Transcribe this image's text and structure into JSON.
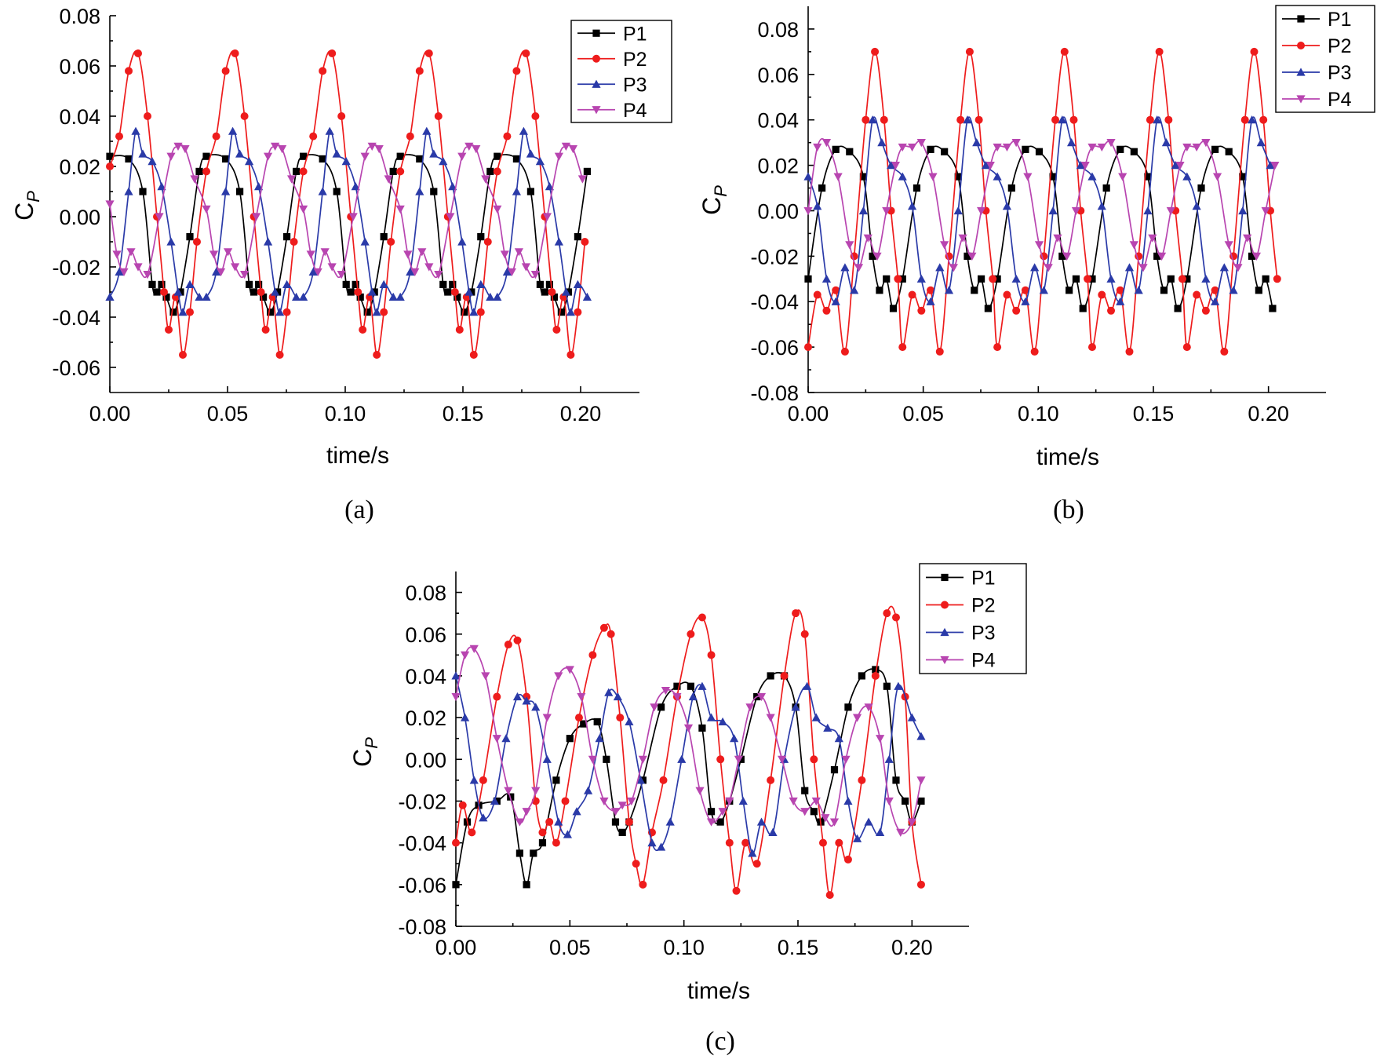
{
  "chart_data": [
    {
      "type": "line",
      "panel": "(a)",
      "caption": "(a)",
      "xlabel": "time/s",
      "ylabel_main": "C",
      "ylabel_sub": "P",
      "xlim": [
        0.0,
        0.225
      ],
      "ylim": [
        -0.07,
        0.08
      ],
      "xticks": [
        "0.00",
        "0.05",
        "0.10",
        "0.15",
        "0.20"
      ],
      "yticks": [
        "0.08",
        "0.06",
        "0.04",
        "0.02",
        "0.00",
        "-0.02",
        "-0.04",
        "-0.06"
      ],
      "ytick_values": [
        0.08,
        0.06,
        0.04,
        0.02,
        0.0,
        -0.02,
        -0.04,
        -0.06
      ],
      "legend_position": "top-right",
      "period": 0.0412,
      "x_end": 0.204,
      "series": [
        {
          "name": "P1",
          "color": "#000000",
          "marker": "square",
          "x": [
            0.0,
            0.008,
            0.014,
            0.018,
            0.02,
            0.022,
            0.024,
            0.027,
            0.03,
            0.034,
            0.038,
            0.041
          ],
          "y": [
            0.024,
            0.023,
            0.01,
            -0.027,
            -0.03,
            -0.027,
            -0.032,
            -0.038,
            -0.03,
            -0.008,
            0.018,
            0.024
          ]
        },
        {
          "name": "P2",
          "color": "#ee1c1c",
          "marker": "circle",
          "x": [
            0.0,
            0.004,
            0.008,
            0.012,
            0.016,
            0.02,
            0.023,
            0.025,
            0.028,
            0.031,
            0.034,
            0.037,
            0.041
          ],
          "y": [
            0.02,
            0.032,
            0.058,
            0.065,
            0.04,
            0.0,
            -0.03,
            -0.045,
            -0.032,
            -0.055,
            -0.038,
            -0.01,
            0.018
          ]
        },
        {
          "name": "P3",
          "color": "#2a3aa8",
          "marker": "triangle-up",
          "x": [
            0.0,
            0.004,
            0.008,
            0.011,
            0.014,
            0.018,
            0.022,
            0.026,
            0.029,
            0.031,
            0.034,
            0.038,
            0.041
          ],
          "y": [
            -0.032,
            -0.022,
            0.01,
            0.034,
            0.025,
            0.022,
            0.012,
            -0.01,
            -0.03,
            -0.038,
            -0.027,
            -0.032,
            -0.032
          ]
        },
        {
          "name": "P4",
          "color": "#b845b0",
          "marker": "triangle-down",
          "x": [
            0.0,
            0.003,
            0.006,
            0.009,
            0.012,
            0.016,
            0.021,
            0.026,
            0.029,
            0.032,
            0.036,
            0.041
          ],
          "y": [
            0.005,
            -0.015,
            -0.022,
            -0.014,
            -0.02,
            -0.023,
            0.0,
            0.024,
            0.028,
            0.027,
            0.015,
            0.003
          ]
        }
      ]
    },
    {
      "type": "line",
      "panel": "(b)",
      "caption": "(b)",
      "xlabel": "time/s",
      "ylabel_main": "C",
      "ylabel_sub": "P",
      "xlim": [
        0.0,
        0.225
      ],
      "ylim": [
        -0.08,
        0.09
      ],
      "xticks": [
        "0.00",
        "0.05",
        "0.10",
        "0.15",
        "0.20"
      ],
      "yticks": [
        "0.08",
        "0.06",
        "0.04",
        "0.02",
        "0.00",
        "-0.02",
        "-0.04",
        "-0.06",
        "-0.08"
      ],
      "ytick_values": [
        0.08,
        0.06,
        0.04,
        0.02,
        0.0,
        -0.02,
        -0.04,
        -0.06,
        -0.08
      ],
      "legend_position": "top-right",
      "period": 0.0412,
      "x_end": 0.204,
      "series": [
        {
          "name": "P1",
          "color": "#000000",
          "marker": "square",
          "x": [
            0.0,
            0.006,
            0.012,
            0.018,
            0.024,
            0.028,
            0.031,
            0.034,
            0.037,
            0.041
          ],
          "y": [
            -0.03,
            0.01,
            0.027,
            0.026,
            0.015,
            -0.02,
            -0.035,
            -0.03,
            -0.043,
            -0.03
          ]
        },
        {
          "name": "P2",
          "color": "#ee1c1c",
          "marker": "circle",
          "x": [
            0.0,
            0.004,
            0.008,
            0.012,
            0.016,
            0.02,
            0.025,
            0.029,
            0.033,
            0.036,
            0.039,
            0.041
          ],
          "y": [
            -0.06,
            -0.037,
            -0.044,
            -0.035,
            -0.062,
            -0.02,
            0.04,
            0.07,
            0.04,
            0.0,
            -0.03,
            -0.06
          ]
        },
        {
          "name": "P3",
          "color": "#2a3aa8",
          "marker": "triangle-up",
          "x": [
            0.0,
            0.004,
            0.008,
            0.012,
            0.016,
            0.02,
            0.024,
            0.028,
            0.032,
            0.036,
            0.041
          ],
          "y": [
            0.015,
            0.002,
            -0.03,
            -0.04,
            -0.025,
            -0.035,
            0.0,
            0.04,
            0.03,
            0.02,
            0.015
          ]
        },
        {
          "name": "P4",
          "color": "#b845b0",
          "marker": "triangle-down",
          "x": [
            0.0,
            0.004,
            0.008,
            0.013,
            0.018,
            0.022,
            0.026,
            0.03,
            0.034,
            0.038,
            0.041
          ],
          "y": [
            0.0,
            0.028,
            0.03,
            0.015,
            -0.015,
            -0.025,
            -0.012,
            -0.02,
            0.0,
            0.02,
            0.028
          ]
        }
      ]
    },
    {
      "type": "line",
      "panel": "(c)",
      "caption": "(c)",
      "xlabel": "time/s",
      "ylabel_main": "C",
      "ylabel_sub": "P",
      "xlim": [
        0.0,
        0.225
      ],
      "ylim": [
        -0.08,
        0.09
      ],
      "xticks": [
        "0.00",
        "0.05",
        "0.10",
        "0.15",
        "0.20"
      ],
      "yticks": [
        "0.08",
        "0.06",
        "0.04",
        "0.02",
        "0.00",
        "-0.02",
        "-0.04",
        "-0.06",
        "-0.08"
      ],
      "ytick_values": [
        0.08,
        0.06,
        0.04,
        0.02,
        0.0,
        -0.02,
        -0.04,
        -0.06,
        -0.08
      ],
      "legend_position": "top-right",
      "period": 0,
      "x_end": 0.204,
      "series": [
        {
          "name": "P1",
          "color": "#000000",
          "marker": "square",
          "x": [
            0.0,
            0.005,
            0.01,
            0.018,
            0.024,
            0.028,
            0.031,
            0.034,
            0.038,
            0.044,
            0.05,
            0.056,
            0.062,
            0.066,
            0.07,
            0.073,
            0.076,
            0.082,
            0.09,
            0.097,
            0.103,
            0.108,
            0.112,
            0.116,
            0.12,
            0.125,
            0.132,
            0.138,
            0.144,
            0.149,
            0.153,
            0.157,
            0.16,
            0.166,
            0.172,
            0.178,
            0.184,
            0.189,
            0.193,
            0.197,
            0.2,
            0.204
          ],
          "y": [
            -0.06,
            -0.03,
            -0.022,
            -0.02,
            -0.018,
            -0.045,
            -0.06,
            -0.045,
            -0.04,
            -0.01,
            0.01,
            0.017,
            0.018,
            0.0,
            -0.03,
            -0.035,
            -0.03,
            -0.01,
            0.025,
            0.035,
            0.035,
            0.015,
            -0.025,
            -0.03,
            -0.02,
            0.0,
            0.03,
            0.04,
            0.04,
            0.025,
            -0.015,
            -0.025,
            -0.03,
            -0.005,
            0.025,
            0.04,
            0.043,
            0.035,
            -0.01,
            -0.02,
            -0.03,
            -0.02
          ]
        },
        {
          "name": "P2",
          "color": "#ee1c1c",
          "marker": "circle",
          "x": [
            0.0,
            0.003,
            0.007,
            0.012,
            0.018,
            0.023,
            0.027,
            0.031,
            0.035,
            0.038,
            0.041,
            0.044,
            0.048,
            0.054,
            0.06,
            0.065,
            0.068,
            0.072,
            0.076,
            0.079,
            0.082,
            0.086,
            0.091,
            0.097,
            0.103,
            0.108,
            0.112,
            0.116,
            0.12,
            0.123,
            0.127,
            0.132,
            0.138,
            0.144,
            0.149,
            0.153,
            0.157,
            0.161,
            0.164,
            0.168,
            0.172,
            0.178,
            0.184,
            0.189,
            0.193,
            0.197,
            0.2,
            0.204
          ],
          "y": [
            -0.04,
            -0.022,
            -0.035,
            -0.01,
            0.03,
            0.055,
            0.057,
            0.03,
            -0.02,
            -0.035,
            -0.03,
            -0.04,
            -0.02,
            0.02,
            0.05,
            0.063,
            0.06,
            0.02,
            -0.03,
            -0.05,
            -0.06,
            -0.035,
            -0.01,
            0.03,
            0.06,
            0.068,
            0.05,
            0.0,
            -0.04,
            -0.063,
            -0.04,
            -0.05,
            -0.01,
            0.04,
            0.07,
            0.06,
            0.0,
            -0.04,
            -0.065,
            -0.04,
            -0.048,
            -0.01,
            0.04,
            0.07,
            0.068,
            0.03,
            -0.03,
            -0.06
          ]
        },
        {
          "name": "P3",
          "color": "#2a3aa8",
          "marker": "triangle-up",
          "x": [
            0.0,
            0.004,
            0.008,
            0.012,
            0.017,
            0.022,
            0.027,
            0.031,
            0.035,
            0.04,
            0.045,
            0.049,
            0.053,
            0.058,
            0.063,
            0.067,
            0.071,
            0.076,
            0.081,
            0.086,
            0.09,
            0.094,
            0.099,
            0.104,
            0.108,
            0.112,
            0.117,
            0.122,
            0.126,
            0.13,
            0.134,
            0.139,
            0.144,
            0.149,
            0.154,
            0.158,
            0.163,
            0.168,
            0.172,
            0.176,
            0.181,
            0.186,
            0.19,
            0.194,
            0.2,
            0.204
          ],
          "y": [
            0.04,
            0.02,
            -0.01,
            -0.028,
            -0.02,
            0.01,
            0.03,
            0.028,
            0.025,
            0.0,
            -0.03,
            -0.036,
            -0.025,
            -0.015,
            0.01,
            0.032,
            0.03,
            0.018,
            -0.01,
            -0.04,
            -0.042,
            -0.03,
            0.0,
            0.03,
            0.035,
            0.02,
            0.018,
            0.01,
            -0.02,
            -0.045,
            -0.03,
            -0.035,
            0.0,
            0.025,
            0.035,
            0.02,
            0.015,
            0.01,
            -0.02,
            -0.038,
            -0.03,
            -0.035,
            0.0,
            0.035,
            0.02,
            0.011
          ]
        },
        {
          "name": "P4",
          "color": "#b845b0",
          "marker": "triangle-down",
          "x": [
            0.0,
            0.004,
            0.008,
            0.013,
            0.018,
            0.023,
            0.028,
            0.031,
            0.035,
            0.04,
            0.045,
            0.05,
            0.055,
            0.06,
            0.065,
            0.07,
            0.073,
            0.077,
            0.082,
            0.087,
            0.092,
            0.097,
            0.102,
            0.107,
            0.112,
            0.117,
            0.12,
            0.124,
            0.129,
            0.134,
            0.138,
            0.143,
            0.148,
            0.153,
            0.158,
            0.162,
            0.166,
            0.171,
            0.176,
            0.181,
            0.186,
            0.19,
            0.195,
            0.2,
            0.204
          ],
          "y": [
            0.03,
            0.05,
            0.053,
            0.04,
            0.01,
            -0.015,
            -0.03,
            -0.025,
            -0.015,
            0.02,
            0.04,
            0.043,
            0.03,
            0.0,
            -0.02,
            -0.025,
            -0.022,
            -0.02,
            0.0,
            0.025,
            0.033,
            0.03,
            0.015,
            -0.015,
            -0.03,
            -0.025,
            -0.02,
            0.0,
            0.025,
            0.03,
            0.02,
            0.0,
            -0.02,
            -0.025,
            -0.02,
            -0.028,
            -0.03,
            0.0,
            0.02,
            0.025,
            0.01,
            -0.02,
            -0.035,
            -0.03,
            -0.01
          ]
        }
      ]
    }
  ]
}
